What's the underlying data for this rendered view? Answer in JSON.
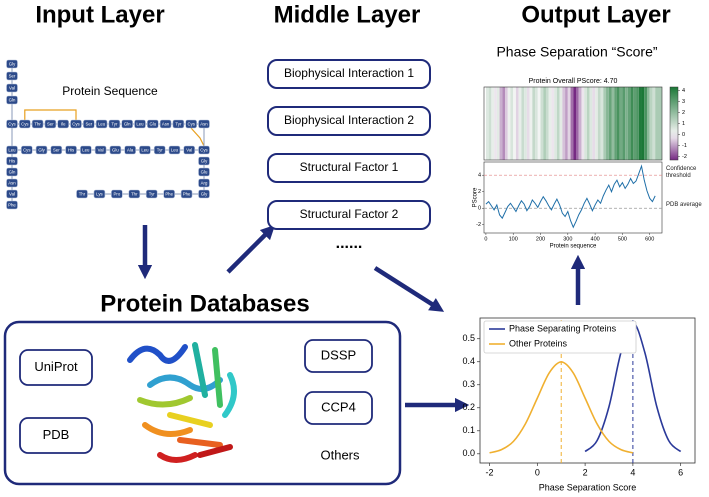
{
  "headers": {
    "input": "Input Layer",
    "middle": "Middle Layer",
    "output": "Output Layer"
  },
  "input": {
    "label": "Protein Sequence",
    "sequence": {
      "top_column": [
        "Gly",
        "Ser",
        "Val",
        "Gln"
      ],
      "row1": [
        "Cys",
        "Cys",
        "Thr",
        "Ser",
        "Ile",
        "Cys",
        "Ser",
        "Leu",
        "Tyr",
        "Gln",
        "Leu",
        "Glu",
        "Asn",
        "Tyr",
        "Cys",
        "Asn"
      ],
      "row2": [
        "Leu",
        "Cys",
        "Gly",
        "Ser",
        "His",
        "Leu",
        "Val",
        "Glu",
        "Ala",
        "Leu",
        "Tyr",
        "Leu",
        "Val",
        "Cys"
      ],
      "left_column": [
        "His",
        "Gln",
        "Asn",
        "Val",
        "Phe"
      ],
      "right_column": [
        "Gly",
        "Glu",
        "Arg"
      ],
      "bottom_row": [
        "Thr",
        "Lys",
        "Pro",
        "Thr",
        "Tyr",
        "Phe",
        "Phe",
        "Gly"
      ]
    }
  },
  "middle": {
    "factors": [
      "Biophysical Interaction 1",
      "Biophysical Interaction 2",
      "Structural Factor 1",
      "Structural Factor 2"
    ],
    "ellipsis": "......"
  },
  "databases": {
    "title": "Protein Databases",
    "items": [
      "UniProt",
      "PDB",
      "DSSP",
      "CCP4"
    ],
    "others": "Others"
  },
  "output": {
    "title": "Phase Separation “Score”",
    "pscore_chart": {
      "type": "line",
      "title": "Protein Overall PScore: 4.70",
      "x": [
        0,
        10,
        20,
        30,
        40,
        50,
        60,
        70,
        80,
        90,
        100,
        110,
        120,
        130,
        140,
        150,
        160,
        170,
        180,
        190,
        200,
        210,
        220,
        230,
        240,
        250,
        260,
        270,
        280,
        290,
        300,
        310,
        320,
        330,
        340,
        350,
        360,
        370,
        380,
        390,
        400,
        410,
        420,
        430,
        440,
        450,
        460,
        470,
        480,
        490,
        500,
        510,
        520,
        530,
        540,
        550,
        560,
        570,
        580,
        590,
        600,
        610,
        620
      ],
      "values": [
        0.5,
        0.8,
        0.3,
        -0.2,
        0.4,
        -0.8,
        -1.2,
        -0.5,
        0.2,
        0.6,
        0.1,
        -0.4,
        0.3,
        0.9,
        0.5,
        -0.3,
        0.2,
        1.0,
        0.6,
        0.1,
        0.8,
        1.4,
        0.9,
        0.3,
        -0.2,
        0.5,
        1.1,
        0.4,
        -0.6,
        -1.0,
        -0.4,
        -1.5,
        -2.3,
        -1.6,
        -0.8,
        -0.2,
        0.6,
        1.2,
        0.5,
        -0.3,
        0.4,
        1.0,
        0.6,
        1.5,
        2.2,
        2.8,
        2.0,
        2.9,
        3.4,
        2.6,
        3.1,
        2.4,
        2.9,
        3.6,
        3.0,
        3.3,
        4.2,
        5.1,
        3.4,
        2.1,
        1.2,
        0.8,
        1.5
      ],
      "color": "#1f6fa8",
      "xlim": [
        -7,
        645
      ],
      "ylim": [
        -3,
        5.6
      ],
      "xticks": [
        0,
        100,
        200,
        300,
        400,
        500,
        600
      ],
      "yticks": [
        -2,
        0,
        2,
        4
      ],
      "xlabel": "Protein sequence",
      "ylabel": "PScore",
      "threshold": {
        "value": 4,
        "label": "Confidence threshold"
      },
      "average": {
        "value": 0,
        "label": "PDB average"
      },
      "colorbar": {
        "lim": [
          -2.3,
          4.3
        ],
        "ticks": [
          -2,
          -1,
          0,
          1,
          2,
          3,
          4
        ]
      }
    },
    "density_chart": {
      "type": "line",
      "x": [
        -2,
        -1.5,
        -1,
        -0.5,
        0,
        0.5,
        1,
        1.5,
        2,
        2.5,
        3,
        3.5,
        4,
        4.5,
        5,
        5.5,
        6
      ],
      "series": [
        {
          "name": "Phase Separating Proteins",
          "color": "#2b3a9a",
          "mean": 4,
          "values": [
            null,
            null,
            null,
            null,
            null,
            null,
            null,
            null,
            0.01,
            0.057,
            0.205,
            0.44,
            0.57,
            0.44,
            0.205,
            0.057,
            0.01
          ]
        },
        {
          "name": "Other Proteins",
          "color": "#f0b030",
          "mean": 1,
          "values": [
            0.004,
            0.018,
            0.054,
            0.13,
            0.242,
            0.352,
            0.399,
            0.352,
            0.242,
            0.13,
            0.054,
            0.018,
            0.004,
            null,
            null,
            null,
            null
          ]
        }
      ],
      "xlim": [
        -2.4,
        6.6
      ],
      "ylim": [
        -0.04,
        0.59
      ],
      "xticks": [
        -2,
        0,
        2,
        4,
        6
      ],
      "yticks": [
        {
          "value": 0,
          "label": "0.0"
        },
        0.1,
        0.2,
        0.3,
        0.4,
        0.5
      ],
      "xlabel": "Phase Separation Score"
    }
  }
}
